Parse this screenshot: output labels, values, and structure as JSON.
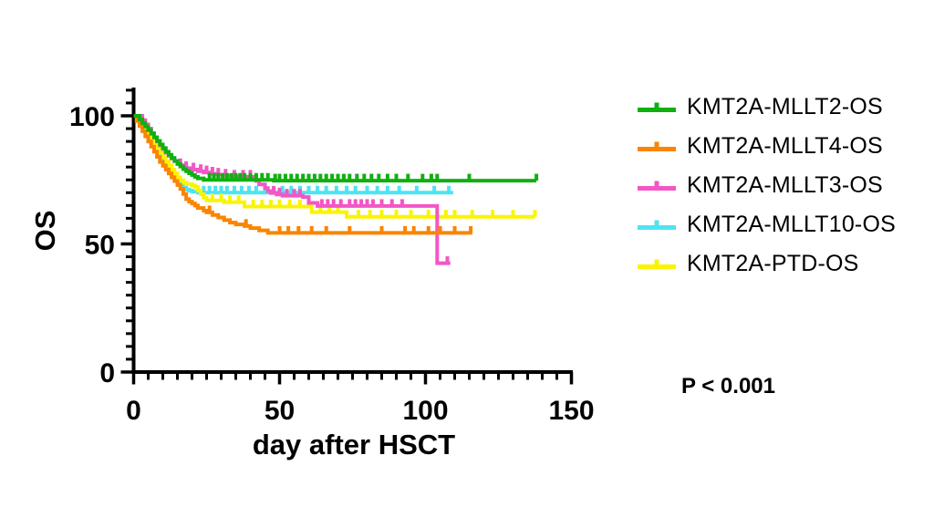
{
  "stats": {
    "p_prefix": "P",
    "p_rest": " < 0.001"
  },
  "axes": {
    "x": {
      "title": "day after HSCT",
      "ticks": [
        0,
        50,
        100,
        150
      ],
      "minor_step": 5,
      "minor_max": 145,
      "range": [
        0,
        150
      ]
    },
    "y": {
      "title": "OS",
      "ticks": [
        0,
        50,
        100
      ],
      "minor_step": 5,
      "minor_max": 110,
      "range": [
        0,
        100
      ]
    }
  },
  "legend": {
    "items": [
      {
        "label": "KMT2A-MLLT2-OS",
        "color": "#10B010"
      },
      {
        "label": "KMT2A-MLLT4-OS",
        "color": "#FB8400"
      },
      {
        "label": "KMT2A-MLLT3-OS",
        "color": "#F356C6"
      },
      {
        "label": "KMT2A-MLLT10-OS",
        "color": "#4FE3F2"
      },
      {
        "label": "KMT2A-PTD-OS",
        "color": "#FBF400"
      }
    ]
  },
  "chart_data": {
    "type": "line",
    "subtype": "kaplan-meier-step",
    "title": "",
    "xlabel": "day after HSCT",
    "ylabel": "OS",
    "xlim": [
      0,
      150
    ],
    "ylim": [
      0,
      100
    ],
    "grid": false,
    "legend_position": "right",
    "p_value": "P < 0.001",
    "draw_order": [
      "KMT2A-MLLT10-OS",
      "KMT2A-PTD-OS",
      "KMT2A-MLLT3-OS",
      "KMT2A-MLLT4-OS",
      "KMT2A-MLLT2-OS"
    ],
    "series": [
      {
        "name": "KMT2A-MLLT2-OS",
        "color": "#10B010",
        "end_day": 138,
        "steps": [
          [
            0,
            100
          ],
          [
            2,
            98.6
          ],
          [
            3,
            97.2
          ],
          [
            4,
            95.8
          ],
          [
            5,
            94.4
          ],
          [
            6,
            93
          ],
          [
            7,
            91.6
          ],
          [
            8,
            90.2
          ],
          [
            9,
            88.8
          ],
          [
            10,
            87.4
          ],
          [
            11,
            86
          ],
          [
            12,
            84.8
          ],
          [
            13,
            83.6
          ],
          [
            14,
            82.4
          ],
          [
            15,
            81.2
          ],
          [
            16,
            80.2
          ],
          [
            17,
            79.2
          ],
          [
            18,
            78.4
          ],
          [
            19,
            77.6
          ],
          [
            20,
            76.9
          ],
          [
            21,
            76.2
          ],
          [
            22,
            75.6
          ],
          [
            24,
            75
          ],
          [
            48,
            74.7
          ]
        ],
        "censors": [
          26,
          27.5,
          29,
          30.5,
          32,
          33.5,
          35,
          36.5,
          38,
          40,
          42,
          44,
          46,
          48.5,
          50,
          52,
          54,
          56,
          58,
          60,
          62,
          64,
          66,
          68,
          70,
          72,
          74,
          76.5,
          79,
          81.5,
          84,
          87,
          90,
          94,
          99,
          102,
          104,
          115,
          138
        ]
      },
      {
        "name": "KMT2A-MLLT4-OS",
        "color": "#FB8400",
        "end_day": 116,
        "steps": [
          [
            0,
            100
          ],
          [
            1,
            98
          ],
          [
            2,
            96
          ],
          [
            3,
            94
          ],
          [
            4,
            92
          ],
          [
            5,
            90
          ],
          [
            6,
            88
          ],
          [
            7,
            86
          ],
          [
            8,
            84
          ],
          [
            9,
            82
          ],
          [
            10,
            80.5
          ],
          [
            11,
            79
          ],
          [
            12,
            77.5
          ],
          [
            13,
            76
          ],
          [
            14,
            74.5
          ],
          [
            15,
            73
          ],
          [
            16,
            71.5
          ],
          [
            17,
            69.5
          ],
          [
            18,
            67.5
          ],
          [
            19,
            66.5
          ],
          [
            20,
            65.8
          ],
          [
            21,
            65
          ],
          [
            22,
            64
          ],
          [
            24,
            63
          ],
          [
            25,
            62.3
          ],
          [
            27,
            61.3
          ],
          [
            29,
            60.3
          ],
          [
            31,
            59.3
          ],
          [
            33,
            58.3
          ],
          [
            35,
            57.6
          ],
          [
            38,
            57
          ],
          [
            40,
            56.2
          ],
          [
            43,
            55.3
          ],
          [
            46,
            54.3
          ]
        ],
        "censors": [
          26,
          38.5,
          50,
          53,
          56.5,
          61,
          66,
          74,
          85,
          93,
          96,
          101,
          105,
          110,
          115.5
        ]
      },
      {
        "name": "KMT2A-MLLT3-OS",
        "color": "#F356C6",
        "end_day": 108.5,
        "steps": [
          [
            0,
            100
          ],
          [
            3,
            98.3
          ],
          [
            4,
            96.6
          ],
          [
            5,
            95
          ],
          [
            6,
            93.3
          ],
          [
            7,
            91.6
          ],
          [
            8,
            90
          ],
          [
            9,
            88.5
          ],
          [
            10,
            87
          ],
          [
            11,
            85.6
          ],
          [
            12,
            84.4
          ],
          [
            13,
            83.3
          ],
          [
            14,
            82.3
          ],
          [
            15,
            81.4
          ],
          [
            16,
            80.7
          ],
          [
            17,
            80.1
          ],
          [
            18,
            79.6
          ],
          [
            20,
            79
          ],
          [
            22,
            78.4
          ],
          [
            24,
            77.9
          ],
          [
            26,
            77.4
          ],
          [
            28,
            77
          ],
          [
            31,
            76.6
          ],
          [
            34,
            76.2
          ],
          [
            42,
            74.6
          ],
          [
            43,
            73.2
          ],
          [
            45,
            71.8
          ],
          [
            46,
            70.6
          ],
          [
            47,
            69.9
          ],
          [
            49,
            69.3
          ],
          [
            51,
            68.8
          ],
          [
            58,
            68.3
          ],
          [
            60,
            66
          ],
          [
            63,
            64.8
          ],
          [
            104,
            42.5
          ]
        ],
        "censors": [
          16,
          18,
          20.5,
          23,
          25,
          27,
          29,
          31.5,
          34.5,
          37.5,
          40,
          48,
          50,
          52.5,
          55,
          57,
          64.5,
          66.5,
          68.5,
          71,
          74,
          76,
          78,
          80,
          82,
          85,
          88.5,
          92,
          107.5
        ]
      },
      {
        "name": "KMT2A-MLLT10-OS",
        "color": "#4FE3F2",
        "end_day": 109.5,
        "steps": [
          [
            0,
            100
          ],
          [
            2,
            97.6
          ],
          [
            3,
            95.6
          ],
          [
            4,
            93.6
          ],
          [
            5,
            91.6
          ],
          [
            6,
            89.6
          ],
          [
            7,
            87.8
          ],
          [
            8,
            86
          ],
          [
            9,
            84.2
          ],
          [
            10,
            82.4
          ],
          [
            11,
            80.6
          ],
          [
            12,
            78.8
          ],
          [
            13,
            77.2
          ],
          [
            14,
            75.6
          ],
          [
            15,
            74.2
          ],
          [
            16,
            73
          ],
          [
            17,
            72
          ],
          [
            18,
            71.2
          ],
          [
            19,
            70.8
          ],
          [
            20,
            70.4
          ],
          [
            22,
            70
          ]
        ],
        "censors": [
          24,
          26,
          28,
          30,
          32,
          34.5,
          37,
          39.5,
          42,
          45,
          48,
          51,
          54,
          57,
          60,
          63,
          66,
          69.5,
          73,
          76,
          80,
          83.5,
          87,
          91,
          97,
          103,
          108
        ]
      },
      {
        "name": "KMT2A-PTD-OS",
        "color": "#FBF400",
        "end_day": 137.5,
        "steps": [
          [
            0,
            100
          ],
          [
            2,
            98.2
          ],
          [
            3,
            96.4
          ],
          [
            4,
            94.6
          ],
          [
            5,
            92.8
          ],
          [
            6,
            91
          ],
          [
            7,
            89.2
          ],
          [
            8,
            87.4
          ],
          [
            9,
            85.6
          ],
          [
            10,
            83.8
          ],
          [
            11,
            82.2
          ],
          [
            12,
            80.6
          ],
          [
            13,
            79
          ],
          [
            14,
            77.5
          ],
          [
            15,
            76
          ],
          [
            16,
            74.8
          ],
          [
            17,
            73.9
          ],
          [
            18,
            73.3
          ],
          [
            20,
            72.8
          ],
          [
            21,
            72.3
          ],
          [
            22,
            70.9
          ],
          [
            23,
            69.4
          ],
          [
            24,
            68
          ],
          [
            25,
            67
          ],
          [
            31,
            66.3
          ],
          [
            38,
            64.6
          ],
          [
            61,
            62.4
          ],
          [
            73,
            60.6
          ]
        ],
        "censors": [
          27,
          30,
          33,
          36,
          41,
          44,
          47,
          50,
          53.5,
          57,
          64,
          67,
          70,
          77,
          81,
          85,
          90,
          95,
          101,
          107,
          110,
          116,
          123,
          130,
          137.5
        ]
      }
    ]
  }
}
